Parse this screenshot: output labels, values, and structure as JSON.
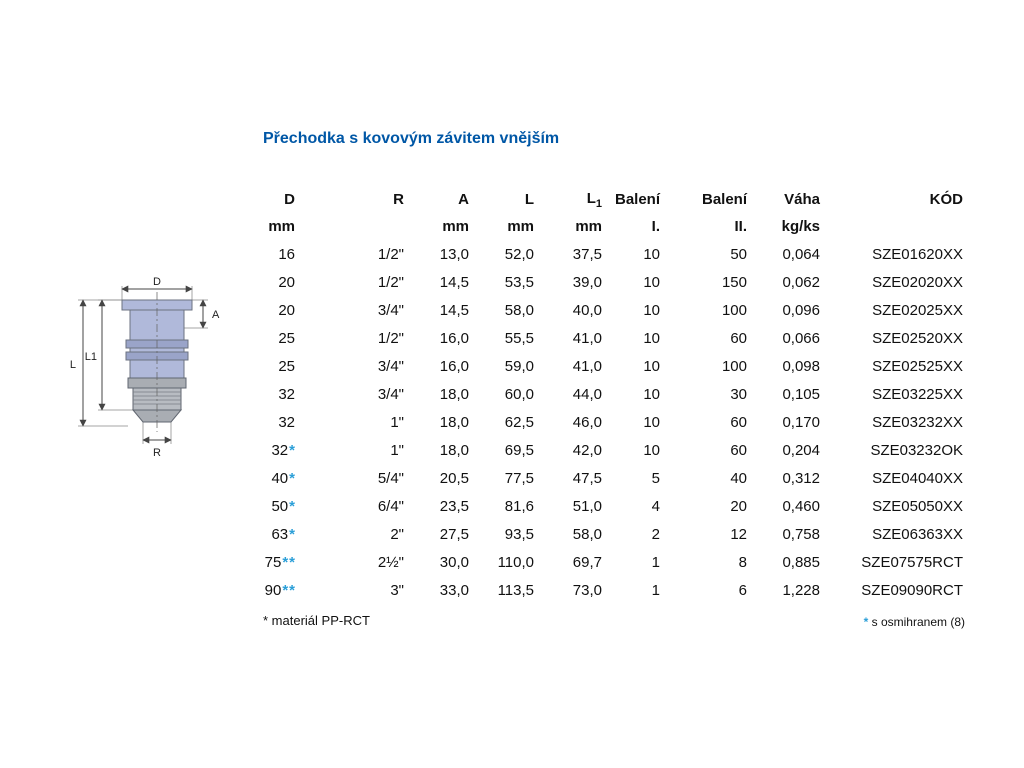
{
  "page": {
    "title": "Přechodka s kovovým závitem vnějším",
    "accent_color": "#0057a6",
    "star_color": "#2b9fd8"
  },
  "drawing": {
    "labels": {
      "d": "D",
      "a": "A",
      "l1": "L1",
      "l": "L",
      "r": "R"
    }
  },
  "table": {
    "star_char": "*",
    "columns": [
      {
        "key": "d",
        "label": "D",
        "sub": "",
        "unit": "mm"
      },
      {
        "key": "r",
        "label": "R",
        "sub": "",
        "unit": ""
      },
      {
        "key": "a",
        "label": "A",
        "sub": "",
        "unit": "mm"
      },
      {
        "key": "l",
        "label": "L",
        "sub": "",
        "unit": "mm"
      },
      {
        "key": "l1",
        "label": "L",
        "sub": "1",
        "unit": "mm"
      },
      {
        "key": "baleni1",
        "label": "Balení",
        "sub": "",
        "unit": "I."
      },
      {
        "key": "baleni2",
        "label": "Balení",
        "sub": "",
        "unit": "II."
      },
      {
        "key": "vaha",
        "label": "Váha",
        "sub": "",
        "unit": "kg/ks"
      },
      {
        "key": "kod",
        "label": "KÓD",
        "sub": "",
        "unit": ""
      }
    ],
    "rows": [
      {
        "d": "16",
        "stars": 0,
        "r": "1/2\"",
        "a": "13,0",
        "l": "52,0",
        "l1": "37,5",
        "baleni1": "10",
        "baleni2": "50",
        "vaha": "0,064",
        "kod": "SZE01620XX"
      },
      {
        "d": "20",
        "stars": 0,
        "r": "1/2\"",
        "a": "14,5",
        "l": "53,5",
        "l1": "39,0",
        "baleni1": "10",
        "baleni2": "150",
        "vaha": "0,062",
        "kod": "SZE02020XX"
      },
      {
        "d": "20",
        "stars": 0,
        "r": "3/4\"",
        "a": "14,5",
        "l": "58,0",
        "l1": "40,0",
        "baleni1": "10",
        "baleni2": "100",
        "vaha": "0,096",
        "kod": "SZE02025XX"
      },
      {
        "d": "25",
        "stars": 0,
        "r": "1/2\"",
        "a": "16,0",
        "l": "55,5",
        "l1": "41,0",
        "baleni1": "10",
        "baleni2": "60",
        "vaha": "0,066",
        "kod": "SZE02520XX"
      },
      {
        "d": "25",
        "stars": 0,
        "r": "3/4\"",
        "a": "16,0",
        "l": "59,0",
        "l1": "41,0",
        "baleni1": "10",
        "baleni2": "100",
        "vaha": "0,098",
        "kod": "SZE02525XX"
      },
      {
        "d": "32",
        "stars": 0,
        "r": "3/4\"",
        "a": "18,0",
        "l": "60,0",
        "l1": "44,0",
        "baleni1": "10",
        "baleni2": "30",
        "vaha": "0,105",
        "kod": "SZE03225XX"
      },
      {
        "d": "32",
        "stars": 0,
        "r": "1\"",
        "a": "18,0",
        "l": "62,5",
        "l1": "46,0",
        "baleni1": "10",
        "baleni2": "60",
        "vaha": "0,170",
        "kod": "SZE03232XX"
      },
      {
        "d": "32",
        "stars": 1,
        "r": "1\"",
        "a": "18,0",
        "l": "69,5",
        "l1": "42,0",
        "baleni1": "10",
        "baleni2": "60",
        "vaha": "0,204",
        "kod": "SZE03232OK"
      },
      {
        "d": "40",
        "stars": 1,
        "r": "5/4\"",
        "a": "20,5",
        "l": "77,5",
        "l1": "47,5",
        "baleni1": "5",
        "baleni2": "40",
        "vaha": "0,312",
        "kod": "SZE04040XX"
      },
      {
        "d": "50",
        "stars": 1,
        "r": "6/4\"",
        "a": "23,5",
        "l": "81,6",
        "l1": "51,0",
        "baleni1": "4",
        "baleni2": "20",
        "vaha": "0,460",
        "kod": "SZE05050XX"
      },
      {
        "d": "63",
        "stars": 1,
        "r": "2\"",
        "a": "27,5",
        "l": "93,5",
        "l1": "58,0",
        "baleni1": "2",
        "baleni2": "12",
        "vaha": "0,758",
        "kod": "SZE06363XX"
      },
      {
        "d": "75",
        "stars": 2,
        "r": "2½\"",
        "a": "30,0",
        "l": "110,0",
        "l1": "69,7",
        "baleni1": "1",
        "baleni2": "8",
        "vaha": "0,885",
        "kod": "SZE07575RCT"
      },
      {
        "d": "90",
        "stars": 2,
        "r": "3\"",
        "a": "33,0",
        "l": "113,5",
        "l1": "73,0",
        "baleni1": "1",
        "baleni2": "6",
        "vaha": "1,228",
        "kod": "SZE09090RCT"
      }
    ]
  },
  "footnotes": {
    "left": {
      "star": "*",
      "text": " materiál PP-RCT"
    },
    "right": {
      "star": "*",
      "text": " s osmihranem (8)"
    }
  }
}
